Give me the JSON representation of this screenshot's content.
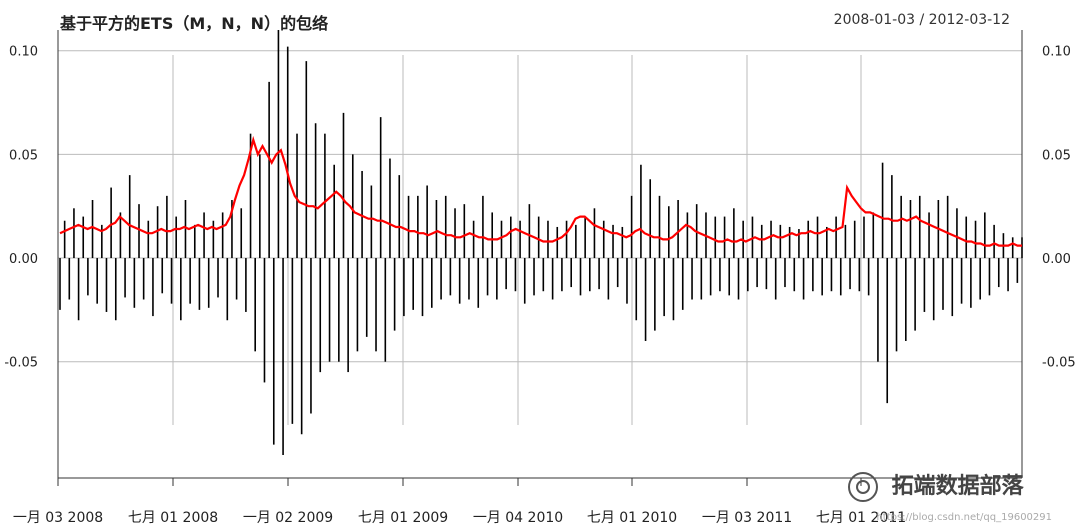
{
  "chart_data": {
    "type": "line",
    "title": "基于平方的ETS（M，N，N）的包络",
    "date_range_label": "2008-01-03 / 2012-03-12",
    "ylim": [
      -0.095,
      0.11
    ],
    "y_ticks": [
      -0.05,
      0.0,
      0.05,
      0.1
    ],
    "y_tick_labels": [
      "-0.05",
      "0.00",
      "0.05",
      "0.10"
    ],
    "x_tick_labels": [
      "一月 03 2008",
      "七月 01 2008",
      "一月 02 2009",
      "七月 01 2009",
      "一月 04 2010",
      "七月 01 2010",
      "一月 03 2011",
      "七月 01 2011"
    ],
    "grid": true,
    "series": [
      {
        "kind": "returns",
        "color": "#000000",
        "values": [
          -0.025,
          0.018,
          -0.02,
          0.024,
          -0.03,
          0.02,
          -0.018,
          0.028,
          -0.022,
          0.016,
          -0.026,
          0.034,
          -0.03,
          0.022,
          -0.019,
          0.04,
          -0.024,
          0.026,
          -0.02,
          0.018,
          -0.028,
          0.025,
          -0.017,
          0.03,
          -0.022,
          0.02,
          -0.03,
          0.028,
          -0.022,
          0.016,
          -0.025,
          0.022,
          -0.024,
          0.018,
          -0.019,
          0.022,
          -0.03,
          0.028,
          -0.02,
          0.024,
          -0.026,
          0.06,
          -0.045,
          0.05,
          -0.06,
          0.085,
          -0.09,
          0.11,
          -0.095,
          0.102,
          -0.08,
          0.06,
          -0.085,
          0.095,
          -0.075,
          0.065,
          -0.055,
          0.06,
          -0.05,
          0.045,
          -0.05,
          0.07,
          -0.055,
          0.05,
          -0.045,
          0.042,
          -0.038,
          0.035,
          -0.045,
          0.068,
          -0.05,
          0.048,
          -0.035,
          0.04,
          -0.028,
          0.03,
          -0.025,
          0.03,
          -0.028,
          0.035,
          -0.024,
          0.028,
          -0.02,
          0.03,
          -0.018,
          0.024,
          -0.022,
          0.026,
          -0.02,
          0.018,
          -0.024,
          0.03,
          -0.018,
          0.022,
          -0.02,
          0.018,
          -0.015,
          0.02,
          -0.016,
          0.018,
          -0.022,
          0.026,
          -0.018,
          0.02,
          -0.016,
          0.018,
          -0.02,
          0.015,
          -0.016,
          0.018,
          -0.014,
          0.016,
          -0.018,
          0.02,
          -0.016,
          0.024,
          -0.015,
          0.018,
          -0.02,
          0.016,
          -0.014,
          0.015,
          -0.022,
          0.03,
          -0.03,
          0.045,
          -0.04,
          0.038,
          -0.035,
          0.03,
          -0.028,
          0.025,
          -0.03,
          0.028,
          -0.025,
          0.022,
          -0.02,
          0.026,
          -0.02,
          0.022,
          -0.018,
          0.02,
          -0.016,
          0.02,
          -0.018,
          0.024,
          -0.02,
          0.018,
          -0.016,
          0.02,
          -0.014,
          0.016,
          -0.015,
          0.018,
          -0.02,
          0.016,
          -0.014,
          0.015,
          -0.016,
          0.014,
          -0.02,
          0.018,
          -0.016,
          0.02,
          -0.018,
          0.015,
          -0.016,
          0.02,
          -0.018,
          0.016,
          -0.015,
          0.018,
          -0.016,
          0.02,
          -0.018,
          0.022,
          -0.05,
          0.046,
          -0.07,
          0.04,
          -0.045,
          0.03,
          -0.04,
          0.028,
          -0.035,
          0.03,
          -0.026,
          0.022,
          -0.03,
          0.028,
          -0.025,
          0.03,
          -0.028,
          0.024,
          -0.022,
          0.02,
          -0.024,
          0.018,
          -0.02,
          0.022,
          -0.018,
          0.016,
          -0.014,
          0.012,
          -0.016,
          0.01,
          -0.012,
          0.01
        ],
        "x_start_date": "2008-01-03",
        "x_end_date": "2012-03-12"
      },
      {
        "kind": "envelope",
        "color": "#ff0000",
        "values": [
          0.012,
          0.013,
          0.014,
          0.015,
          0.016,
          0.015,
          0.014,
          0.015,
          0.014,
          0.013,
          0.014,
          0.016,
          0.017,
          0.02,
          0.018,
          0.016,
          0.015,
          0.014,
          0.013,
          0.012,
          0.012,
          0.013,
          0.014,
          0.013,
          0.013,
          0.014,
          0.014,
          0.015,
          0.014,
          0.015,
          0.016,
          0.015,
          0.014,
          0.015,
          0.014,
          0.015,
          0.016,
          0.02,
          0.028,
          0.035,
          0.04,
          0.048,
          0.057,
          0.05,
          0.054,
          0.05,
          0.046,
          0.05,
          0.052,
          0.045,
          0.036,
          0.03,
          0.027,
          0.026,
          0.025,
          0.025,
          0.024,
          0.026,
          0.028,
          0.03,
          0.032,
          0.03,
          0.027,
          0.025,
          0.022,
          0.021,
          0.02,
          0.019,
          0.019,
          0.018,
          0.018,
          0.017,
          0.016,
          0.015,
          0.015,
          0.014,
          0.013,
          0.013,
          0.012,
          0.012,
          0.011,
          0.012,
          0.013,
          0.012,
          0.011,
          0.011,
          0.01,
          0.01,
          0.011,
          0.012,
          0.011,
          0.01,
          0.01,
          0.009,
          0.009,
          0.009,
          0.01,
          0.011,
          0.013,
          0.014,
          0.013,
          0.012,
          0.011,
          0.01,
          0.009,
          0.008,
          0.008,
          0.008,
          0.009,
          0.01,
          0.012,
          0.015,
          0.019,
          0.02,
          0.02,
          0.018,
          0.016,
          0.015,
          0.014,
          0.013,
          0.012,
          0.012,
          0.011,
          0.01,
          0.011,
          0.013,
          0.014,
          0.012,
          0.011,
          0.01,
          0.01,
          0.009,
          0.009,
          0.01,
          0.012,
          0.014,
          0.016,
          0.015,
          0.013,
          0.012,
          0.011,
          0.01,
          0.009,
          0.008,
          0.008,
          0.009,
          0.008,
          0.008,
          0.009,
          0.008,
          0.009,
          0.01,
          0.009,
          0.009,
          0.01,
          0.011,
          0.01,
          0.01,
          0.011,
          0.012,
          0.011,
          0.012,
          0.012,
          0.013,
          0.012,
          0.012,
          0.013,
          0.014,
          0.013,
          0.014,
          0.015,
          0.034,
          0.03,
          0.027,
          0.024,
          0.022,
          0.022,
          0.021,
          0.02,
          0.019,
          0.019,
          0.018,
          0.018,
          0.019,
          0.018,
          0.019,
          0.02,
          0.018,
          0.017,
          0.016,
          0.015,
          0.014,
          0.013,
          0.012,
          0.011,
          0.01,
          0.009,
          0.008,
          0.008,
          0.007,
          0.007,
          0.006,
          0.006,
          0.007,
          0.006,
          0.006,
          0.006,
          0.007,
          0.006,
          0.006
        ]
      }
    ]
  },
  "watermark": {
    "text": "拓端数据部落",
    "icon": "wechat-icon"
  },
  "url_note": "https://blog.csdn.net/qq_19600291"
}
